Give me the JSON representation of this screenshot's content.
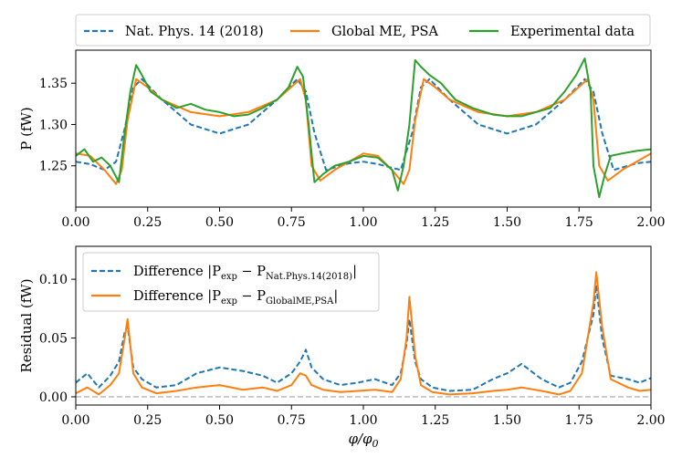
{
  "chart_data": [
    {
      "type": "line",
      "title": "",
      "xlabel": "",
      "ylabel": "P (fW)",
      "xlim": [
        0,
        2
      ],
      "ylim": [
        1.2,
        1.39
      ],
      "xticks": [
        "0.00",
        "0.25",
        "0.50",
        "0.75",
        "1.00",
        "1.25",
        "1.50",
        "1.75",
        "2.00"
      ],
      "yticks": [
        "1.25",
        "1.30",
        "1.35"
      ],
      "legend_position": "top, outside (horizontal)",
      "series": [
        {
          "name": "Nat. Phys. 14 (2018)",
          "color": "#1f77b4",
          "style": "dashed",
          "x": [
            0.0,
            0.05,
            0.1,
            0.14,
            0.17,
            0.2,
            0.23,
            0.3,
            0.4,
            0.5,
            0.6,
            0.7,
            0.77,
            0.8,
            0.83,
            0.87,
            0.95,
            1.0,
            1.05,
            1.13,
            1.17,
            1.2,
            1.23,
            1.3,
            1.4,
            1.5,
            1.6,
            1.7,
            1.77,
            1.8,
            1.83,
            1.87,
            1.95,
            2.0
          ],
          "y": [
            1.255,
            1.252,
            1.245,
            1.255,
            1.295,
            1.345,
            1.355,
            1.33,
            1.3,
            1.289,
            1.3,
            1.33,
            1.355,
            1.34,
            1.29,
            1.245,
            1.253,
            1.255,
            1.252,
            1.245,
            1.29,
            1.345,
            1.355,
            1.33,
            1.3,
            1.289,
            1.3,
            1.33,
            1.355,
            1.34,
            1.29,
            1.245,
            1.253,
            1.255
          ]
        },
        {
          "name": "Global ME, PSA",
          "color": "#ff7f0e",
          "style": "solid",
          "x": [
            0.0,
            0.05,
            0.1,
            0.14,
            0.16,
            0.18,
            0.21,
            0.25,
            0.3,
            0.4,
            0.5,
            0.6,
            0.7,
            0.78,
            0.8,
            0.82,
            0.85,
            0.9,
            1.0,
            1.05,
            1.1,
            1.14,
            1.16,
            1.18,
            1.21,
            1.25,
            1.3,
            1.4,
            1.5,
            1.6,
            1.7,
            1.78,
            1.8,
            1.82,
            1.85,
            1.9,
            2.0
          ],
          "y": [
            1.265,
            1.262,
            1.245,
            1.228,
            1.245,
            1.305,
            1.355,
            1.345,
            1.33,
            1.315,
            1.31,
            1.315,
            1.33,
            1.355,
            1.33,
            1.25,
            1.232,
            1.245,
            1.265,
            1.262,
            1.245,
            1.228,
            1.245,
            1.305,
            1.355,
            1.345,
            1.33,
            1.315,
            1.31,
            1.315,
            1.33,
            1.355,
            1.33,
            1.25,
            1.232,
            1.245,
            1.265
          ]
        },
        {
          "name": "Experimental data",
          "color": "#2ca02c",
          "style": "solid",
          "x": [
            0.0,
            0.03,
            0.06,
            0.09,
            0.12,
            0.15,
            0.17,
            0.19,
            0.21,
            0.23,
            0.26,
            0.3,
            0.35,
            0.4,
            0.45,
            0.5,
            0.55,
            0.6,
            0.65,
            0.7,
            0.74,
            0.77,
            0.79,
            0.81,
            0.83,
            0.86,
            0.9,
            0.95,
            1.0,
            1.05,
            1.1,
            1.12,
            1.14,
            1.16,
            1.18,
            1.2,
            1.23,
            1.27,
            1.32,
            1.38,
            1.45,
            1.5,
            1.55,
            1.6,
            1.65,
            1.7,
            1.74,
            1.77,
            1.79,
            1.8,
            1.82,
            1.84,
            1.86,
            1.9,
            1.95,
            2.0
          ],
          "y": [
            1.262,
            1.27,
            1.255,
            1.26,
            1.25,
            1.23,
            1.29,
            1.34,
            1.372,
            1.36,
            1.34,
            1.33,
            1.32,
            1.325,
            1.318,
            1.315,
            1.31,
            1.312,
            1.32,
            1.33,
            1.345,
            1.37,
            1.358,
            1.3,
            1.23,
            1.24,
            1.25,
            1.255,
            1.262,
            1.26,
            1.245,
            1.22,
            1.25,
            1.3,
            1.378,
            1.37,
            1.36,
            1.35,
            1.33,
            1.32,
            1.312,
            1.31,
            1.31,
            1.315,
            1.32,
            1.34,
            1.36,
            1.38,
            1.34,
            1.25,
            1.212,
            1.24,
            1.262,
            1.265,
            1.268,
            1.27
          ]
        }
      ]
    },
    {
      "type": "line",
      "title": "",
      "xlabel": "φ/φ",
      "xlabel_subscript": "0",
      "ylabel": "Residual (fW)",
      "xlim": [
        0,
        2
      ],
      "ylim": [
        -0.007,
        0.128
      ],
      "xticks": [
        "0.00",
        "0.25",
        "0.50",
        "0.75",
        "1.00",
        "1.25",
        "1.50",
        "1.75",
        "2.00"
      ],
      "yticks": [
        "0.00",
        "0.05",
        "0.10"
      ],
      "legend_position": "top-left",
      "baseline": {
        "value": 0.0,
        "color": "#c0c0c0",
        "style": "dashed"
      },
      "series": [
        {
          "name": "Difference |P_exp − P_Nat.Phys.14(2018)|",
          "color": "#1f77b4",
          "style": "dashed",
          "label_prefix": "Difference |P",
          "label_sub1": "exp",
          "label_mid": " − P",
          "label_sub2": "Nat.Phys.14(2018)",
          "label_suffix": "|",
          "x": [
            0.0,
            0.04,
            0.08,
            0.12,
            0.15,
            0.17,
            0.18,
            0.2,
            0.23,
            0.28,
            0.35,
            0.42,
            0.5,
            0.58,
            0.65,
            0.7,
            0.75,
            0.78,
            0.8,
            0.82,
            0.86,
            0.92,
            0.98,
            1.04,
            1.1,
            1.13,
            1.15,
            1.16,
            1.18,
            1.2,
            1.24,
            1.3,
            1.38,
            1.45,
            1.5,
            1.55,
            1.62,
            1.68,
            1.72,
            1.76,
            1.8,
            1.81,
            1.83,
            1.86,
            1.92,
            1.96,
            2.0
          ],
          "y": [
            0.012,
            0.02,
            0.008,
            0.018,
            0.03,
            0.055,
            0.06,
            0.025,
            0.015,
            0.008,
            0.01,
            0.02,
            0.025,
            0.022,
            0.018,
            0.012,
            0.02,
            0.03,
            0.04,
            0.025,
            0.015,
            0.01,
            0.012,
            0.015,
            0.01,
            0.02,
            0.045,
            0.066,
            0.03,
            0.015,
            0.008,
            0.005,
            0.006,
            0.015,
            0.02,
            0.028,
            0.015,
            0.008,
            0.012,
            0.03,
            0.07,
            0.095,
            0.05,
            0.018,
            0.015,
            0.012,
            0.016
          ]
        },
        {
          "name": "Difference |P_exp − P_GlobalME,PSA|",
          "color": "#ff7f0e",
          "style": "solid",
          "label_prefix": "Difference |P",
          "label_sub1": "exp",
          "label_mid": " − P",
          "label_sub2": "GlobalME,PSA",
          "label_suffix": "|",
          "x": [
            0.0,
            0.04,
            0.08,
            0.12,
            0.15,
            0.17,
            0.18,
            0.2,
            0.23,
            0.28,
            0.35,
            0.42,
            0.5,
            0.58,
            0.65,
            0.7,
            0.75,
            0.78,
            0.8,
            0.82,
            0.86,
            0.92,
            0.98,
            1.04,
            1.1,
            1.13,
            1.15,
            1.16,
            1.18,
            1.2,
            1.24,
            1.3,
            1.38,
            1.45,
            1.5,
            1.55,
            1.62,
            1.68,
            1.72,
            1.76,
            1.8,
            1.81,
            1.83,
            1.86,
            1.92,
            1.96,
            2.0
          ],
          "y": [
            0.003,
            0.008,
            0.002,
            0.01,
            0.02,
            0.05,
            0.066,
            0.02,
            0.008,
            0.003,
            0.005,
            0.008,
            0.01,
            0.006,
            0.008,
            0.005,
            0.01,
            0.02,
            0.018,
            0.01,
            0.006,
            0.004,
            0.005,
            0.006,
            0.004,
            0.015,
            0.05,
            0.085,
            0.035,
            0.01,
            0.004,
            0.002,
            0.003,
            0.005,
            0.006,
            0.008,
            0.005,
            0.002,
            0.005,
            0.02,
            0.08,
            0.106,
            0.06,
            0.015,
            0.008,
            0.005,
            0.006
          ]
        }
      ]
    }
  ]
}
